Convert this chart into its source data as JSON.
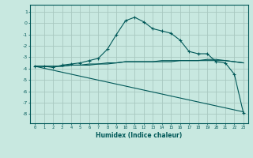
{
  "xlabel": "Humidex (Indice chaleur)",
  "ylabel": "",
  "bg_color": "#c8e8e0",
  "grid_color": "#a8c8c0",
  "line_color": "#005858",
  "xlim": [
    -0.5,
    23.5
  ],
  "ylim": [
    -8.8,
    1.6
  ],
  "yticks": [
    1,
    0,
    -1,
    -2,
    -3,
    -4,
    -5,
    -6,
    -7,
    -8
  ],
  "xticks": [
    0,
    1,
    2,
    3,
    4,
    5,
    6,
    7,
    8,
    9,
    10,
    11,
    12,
    13,
    14,
    15,
    16,
    17,
    18,
    19,
    20,
    21,
    22,
    23
  ],
  "series": [
    {
      "x": [
        0,
        1,
        2,
        3,
        4,
        5,
        6,
        7,
        8,
        9,
        10,
        11,
        12,
        13,
        14,
        15,
        16,
        17,
        18,
        19,
        20,
        21,
        22,
        23
      ],
      "y": [
        -3.8,
        -3.8,
        -3.9,
        -3.7,
        -3.6,
        -3.5,
        -3.3,
        -3.1,
        -2.3,
        -1.0,
        0.2,
        0.5,
        0.1,
        -0.5,
        -0.7,
        -0.9,
        -1.5,
        -2.5,
        -2.7,
        -2.7,
        -3.4,
        -3.5,
        -4.5,
        -7.9
      ],
      "marker": "+"
    },
    {
      "x": [
        0,
        1,
        2,
        3,
        4,
        5,
        6,
        7,
        8,
        9,
        10,
        11,
        12,
        13,
        14,
        15,
        16,
        17,
        18,
        19,
        20,
        21,
        22,
        23
      ],
      "y": [
        -3.8,
        -3.8,
        -3.8,
        -3.8,
        -3.7,
        -3.7,
        -3.7,
        -3.6,
        -3.6,
        -3.5,
        -3.4,
        -3.4,
        -3.4,
        -3.4,
        -3.4,
        -3.4,
        -3.3,
        -3.3,
        -3.3,
        -3.3,
        -3.3,
        -3.3,
        -3.4,
        -3.5
      ],
      "marker": null
    },
    {
      "x": [
        0,
        1,
        2,
        3,
        4,
        5,
        6,
        7,
        8,
        9,
        10,
        11,
        12,
        13,
        14,
        15,
        16,
        17,
        18,
        19,
        20,
        21,
        22,
        23
      ],
      "y": [
        -3.8,
        -3.8,
        -3.8,
        -3.8,
        -3.7,
        -3.7,
        -3.6,
        -3.6,
        -3.5,
        -3.5,
        -3.4,
        -3.4,
        -3.4,
        -3.4,
        -3.3,
        -3.3,
        -3.3,
        -3.3,
        -3.3,
        -3.2,
        -3.2,
        -3.3,
        -3.4,
        -3.5
      ],
      "marker": null
    },
    {
      "x": [
        0,
        23
      ],
      "y": [
        -3.8,
        -7.8
      ],
      "marker": null
    }
  ]
}
